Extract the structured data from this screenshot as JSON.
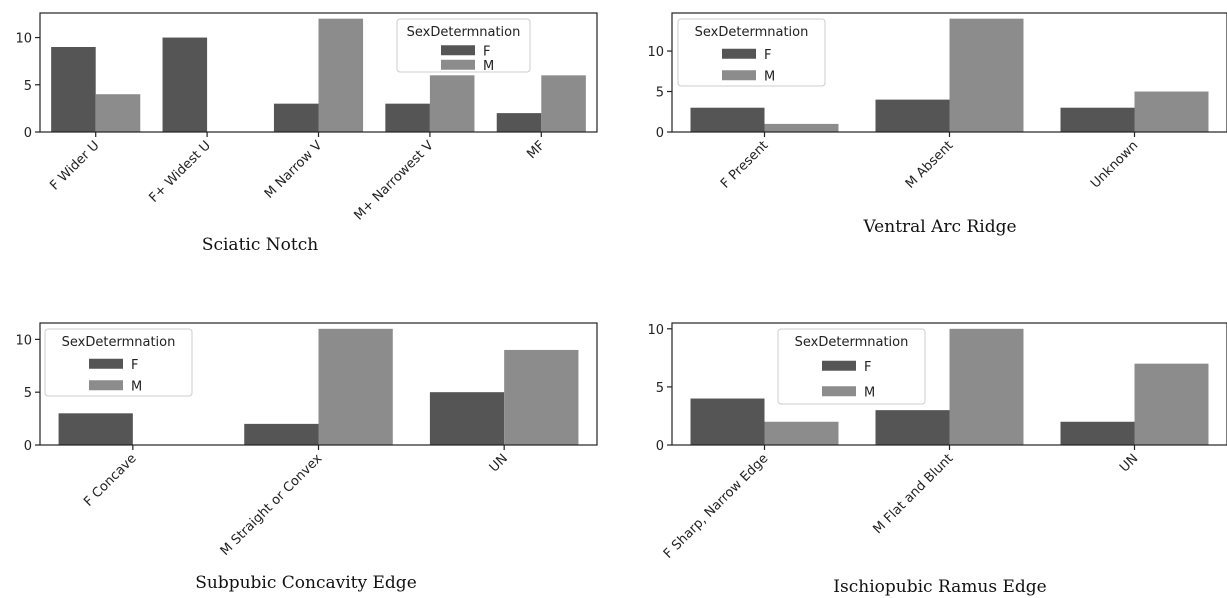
{
  "colors": {
    "F": "#555555",
    "M": "#8c8c8c",
    "axis": "#222222"
  },
  "chart_data": [
    {
      "type": "bar",
      "title": "Sciatic Notch",
      "xlabel": "Sciatic Notch",
      "ylabel": "",
      "categories": [
        "F Wider U",
        "F+ Widest U",
        "M Narrow V",
        "M+ Narrowest V",
        "MF"
      ],
      "series": [
        {
          "name": "F",
          "values": [
            9,
            10,
            3,
            3,
            2
          ]
        },
        {
          "name": "M",
          "values": [
            4,
            0,
            12,
            6,
            6
          ]
        }
      ],
      "ylim": [
        0,
        12.6
      ],
      "yticks": [
        0,
        5,
        10
      ],
      "legend": {
        "title": "SexDetermnation",
        "placement": "upper-center"
      },
      "grid": false
    },
    {
      "type": "bar",
      "title": "Ventral Arc Ridge",
      "xlabel": "Ventral Arc Ridge",
      "ylabel": "",
      "categories": [
        "F Present",
        "M Absent",
        "Unknown"
      ],
      "series": [
        {
          "name": "F",
          "values": [
            3,
            4,
            3
          ]
        },
        {
          "name": "M",
          "values": [
            1,
            14,
            5
          ]
        }
      ],
      "ylim": [
        0,
        14.7
      ],
      "yticks": [
        0,
        5,
        10
      ],
      "legend": {
        "title": "SexDetermnation",
        "placement": "upper-left"
      },
      "grid": false
    },
    {
      "type": "bar",
      "title": "Subpubic Concavity Edge",
      "xlabel": "Subpubic Concavity Edge",
      "ylabel": "",
      "categories": [
        "F Concave",
        "M Straight or Convex",
        "UN"
      ],
      "series": [
        {
          "name": "F",
          "values": [
            3,
            2,
            5
          ]
        },
        {
          "name": "M",
          "values": [
            0,
            11,
            9
          ]
        }
      ],
      "ylim": [
        0,
        11.55
      ],
      "yticks": [
        0,
        5,
        10
      ],
      "legend": {
        "title": "SexDetermnation",
        "placement": "upper-left"
      },
      "grid": false
    },
    {
      "type": "bar",
      "title": "Ischiopubic Ramus Edge",
      "xlabel": "Ischiopubic Ramus Edge",
      "ylabel": "",
      "categories": [
        "F Sharp, Narrow Edge",
        "M  Flat and Blunt",
        "UN"
      ],
      "series": [
        {
          "name": "F",
          "values": [
            4,
            3,
            2
          ]
        },
        {
          "name": "M",
          "values": [
            2,
            10,
            7
          ]
        }
      ],
      "ylim": [
        0,
        10.5
      ],
      "yticks": [
        0,
        5,
        10
      ],
      "legend": {
        "title": "SexDetermnation",
        "placement": "upper-center"
      },
      "grid": false
    }
  ]
}
